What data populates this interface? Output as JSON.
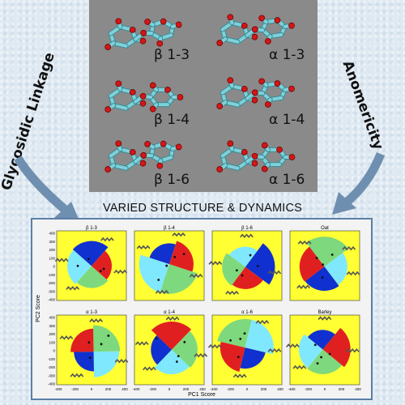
{
  "side_labels": {
    "left": "Glycosidic Linkage",
    "right": "Anomericity"
  },
  "title": "VARIED STRUCTURE & DYNAMICS",
  "molecules": [
    {
      "label": "β 1-3"
    },
    {
      "label": "α 1-3"
    },
    {
      "label": "β 1-4"
    },
    {
      "label": "α 1-4"
    },
    {
      "label": "β 1-6"
    },
    {
      "label": "α 1-6"
    }
  ],
  "plots": {
    "ylabel": "PC2 Score",
    "xlabel": "PC1 Score",
    "panels": [
      {
        "title": "β 1-3"
      },
      {
        "title": "β 1-4"
      },
      {
        "title": "β 1-6"
      },
      {
        "title": "Oat"
      },
      {
        "title": "α 1-3"
      },
      {
        "title": "α 1-4"
      },
      {
        "title": "α 1-6"
      },
      {
        "title": "Barley"
      }
    ],
    "yticks": [
      "400",
      "300",
      "200",
      "100",
      "0",
      "-100",
      "-200",
      "-300",
      "-400"
    ],
    "xticks": [
      "-400",
      "-200",
      "0",
      "200",
      "400"
    ]
  },
  "colors": {
    "plot_bg": "#ffff33",
    "red": "#e02020",
    "blue": "#1030d0",
    "green": "#7ed87e",
    "cyan": "#7fe8ff",
    "arrow": "#6f8fb0",
    "carbon": "#7fd0d8",
    "oxygen": "#d01818"
  }
}
